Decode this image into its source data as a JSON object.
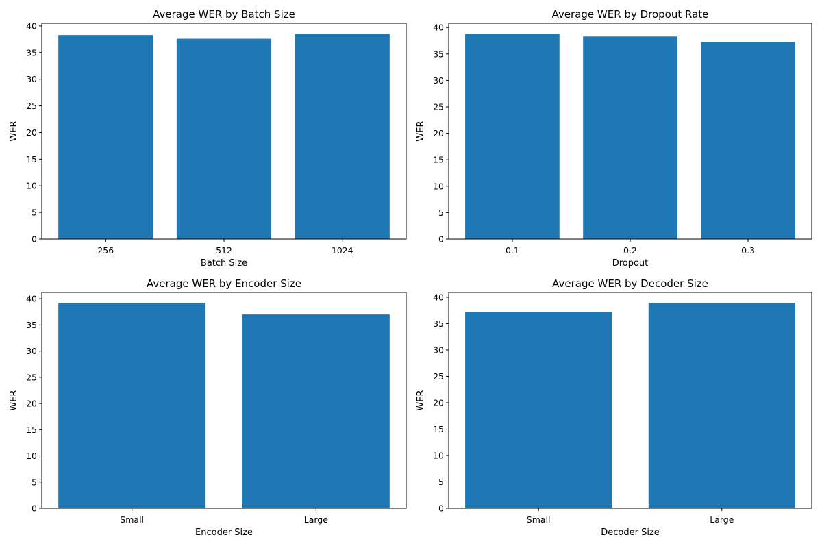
{
  "colors": {
    "bar": "#1f77b4",
    "axis": "#000000",
    "background": "#ffffff"
  },
  "chart_data": [
    {
      "type": "bar",
      "title": "Average WER by Batch Size",
      "xlabel": "Batch Size",
      "ylabel": "WER",
      "categories": [
        "256",
        "512",
        "1024"
      ],
      "values": [
        38.3,
        37.6,
        38.5
      ],
      "ylim": [
        0,
        40.5
      ],
      "yticks": [
        0,
        5,
        10,
        15,
        20,
        25,
        30,
        35,
        40
      ],
      "grid": false
    },
    {
      "type": "bar",
      "title": "Average WER by Dropout Rate",
      "xlabel": "Dropout",
      "ylabel": "WER",
      "categories": [
        "0.1",
        "0.2",
        "0.3"
      ],
      "values": [
        38.8,
        38.3,
        37.2
      ],
      "ylim": [
        0,
        40.8
      ],
      "yticks": [
        0,
        5,
        10,
        15,
        20,
        25,
        30,
        35,
        40
      ],
      "grid": false
    },
    {
      "type": "bar",
      "title": "Average WER by Encoder Size",
      "xlabel": "Encoder Size",
      "ylabel": "WER",
      "categories": [
        "Small",
        "Large"
      ],
      "values": [
        39.2,
        37.0
      ],
      "ylim": [
        0,
        41.2
      ],
      "yticks": [
        0,
        5,
        10,
        15,
        20,
        25,
        30,
        35,
        40
      ],
      "grid": false
    },
    {
      "type": "bar",
      "title": "Average WER by Decoder Size",
      "xlabel": "Decoder Size",
      "ylabel": "WER",
      "categories": [
        "Small",
        "Large"
      ],
      "values": [
        37.2,
        38.9
      ],
      "ylim": [
        0,
        40.9
      ],
      "yticks": [
        0,
        5,
        10,
        15,
        20,
        25,
        30,
        35,
        40
      ],
      "grid": false
    }
  ]
}
